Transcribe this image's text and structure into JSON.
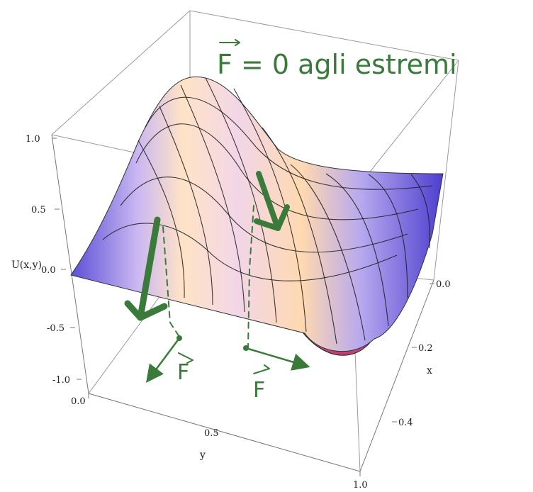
{
  "chart_data": {
    "type": "surface3d",
    "z_label": "U(x,y)",
    "x_label": "x",
    "y_label": "y",
    "z_ticks": [
      "1.0",
      "0.5",
      "0.0",
      "-0.5",
      "-1.0"
    ],
    "x_ticks": [
      "0.0",
      "0.2",
      "0.4"
    ],
    "y_ticks": [
      "0.0",
      "0.5",
      "1.0"
    ],
    "zlim": [
      -1,
      1
    ],
    "xlim": [
      0,
      0.5
    ],
    "ylim": [
      0,
      1
    ]
  },
  "annotation": {
    "title": "F = 0  agli estremi",
    "vec_symbol": "F",
    "label_left": "F",
    "label_right": "F"
  }
}
